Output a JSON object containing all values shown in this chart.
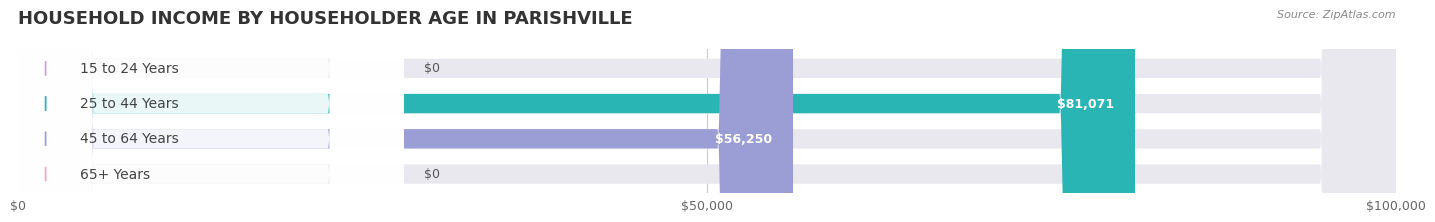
{
  "title": "HOUSEHOLD INCOME BY HOUSEHOLDER AGE IN PARISHVILLE",
  "source": "Source: ZipAtlas.com",
  "categories": [
    "15 to 24 Years",
    "25 to 44 Years",
    "45 to 64 Years",
    "65+ Years"
  ],
  "values": [
    0,
    81071,
    56250,
    0
  ],
  "bar_colors": [
    "#c9a8d4",
    "#2ab5b5",
    "#9b9ed4",
    "#f4a7be"
  ],
  "bar_bg_color": "#e8e8ee",
  "xlim": [
    0,
    100000
  ],
  "xticks": [
    0,
    50000,
    100000
  ],
  "xtick_labels": [
    "$0",
    "$50,000",
    "$100,000"
  ],
  "value_labels": [
    "$0",
    "$81,071",
    "$56,250",
    "$0"
  ],
  "bg_color": "#ffffff",
  "title_color": "#333333",
  "label_color": "#444444",
  "value_color_inside": "#ffffff",
  "value_color_outside": "#555555",
  "title_fontsize": 13,
  "label_fontsize": 10,
  "value_fontsize": 9,
  "tick_fontsize": 9,
  "bar_height": 0.55,
  "fig_width": 14.06,
  "fig_height": 2.33
}
